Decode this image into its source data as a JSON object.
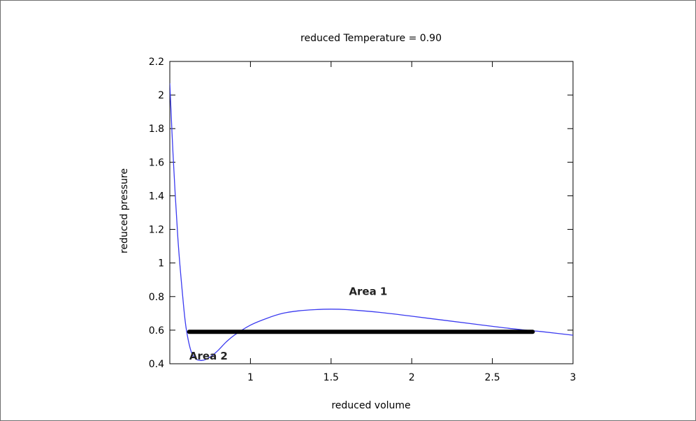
{
  "chart_data": {
    "type": "line",
    "title": "reduced Temperature = 0.90",
    "xlabel": "reduced volume",
    "ylabel": "reduced pressure",
    "xlim": [
      0.5,
      3
    ],
    "ylim": [
      0.4,
      2.2
    ],
    "x_ticks": [
      1,
      1.5,
      2,
      2.5,
      3
    ],
    "x_tick_labels": [
      "1",
      "1.5",
      "2",
      "2.5",
      "3"
    ],
    "y_ticks": [
      0.4,
      0.6,
      0.8,
      1,
      1.2,
      1.4,
      1.6,
      1.8,
      2,
      2.2
    ],
    "y_tick_labels": [
      "0.4",
      "0.6",
      "0.8",
      "1",
      "1.2",
      "1.4",
      "1.6",
      "1.8",
      "2",
      "2.2"
    ],
    "grid": false,
    "series": [
      {
        "kind": "curve",
        "color": "#3a3af0",
        "x": [
          0.5,
          0.52,
          0.55,
          0.58,
          0.6,
          0.63,
          0.66,
          0.7,
          0.75,
          0.8,
          0.85,
          0.9,
          1.0,
          1.1,
          1.2,
          1.3,
          1.4,
          1.5,
          1.6,
          1.8,
          2.0,
          2.2,
          2.4,
          2.6,
          2.75,
          2.8,
          3.0
        ],
        "y": [
          2.07,
          1.65,
          1.15,
          0.8,
          0.62,
          0.48,
          0.43,
          0.42,
          0.44,
          0.48,
          0.53,
          0.57,
          0.63,
          0.67,
          0.7,
          0.715,
          0.722,
          0.725,
          0.722,
          0.706,
          0.683,
          0.659,
          0.635,
          0.611,
          0.596,
          0.592,
          0.57
        ]
      },
      {
        "kind": "horizontal-line",
        "color": "#000000",
        "x": [
          0.62,
          2.75
        ],
        "y": [
          0.59,
          0.59
        ]
      }
    ],
    "annotations": [
      {
        "text": "Area 1",
        "x": 1.73,
        "y": 0.81
      },
      {
        "text": "Area 2",
        "x": 0.74,
        "y": 0.425
      }
    ]
  }
}
